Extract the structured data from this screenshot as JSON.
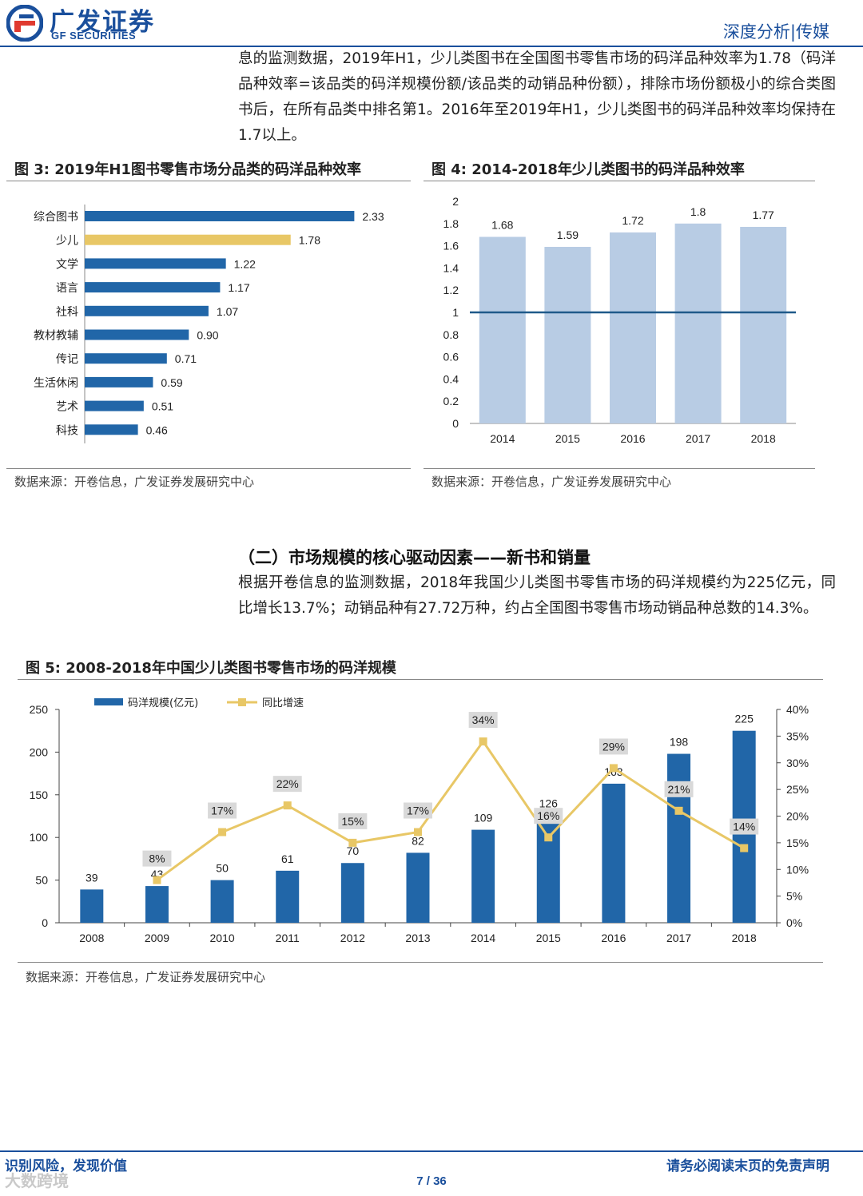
{
  "header": {
    "logo_cn": "广发证券",
    "logo_en": "GF SECURITIES",
    "section": "深度分析|传媒"
  },
  "intro_paragraph": "息的监测数据，2019年H1，少儿类图书在全国图书零售市场的码洋品种效率为1.78（码洋品种效率=该品类的码洋规模份额/该品类的动销品种份额），排除市场份额极小的综合类图书后，在所有品类中排名第1。2016年至2019年H1，少儿类图书的码洋品种效率均保持在1.7以上。",
  "figure3": {
    "title": "图 3: 2019年H1图书零售市场分品类的码洋品种效率",
    "source": "数据来源：开卷信息，广发证券发展研究中心"
  },
  "figure4": {
    "title": "图 4:  2014-2018年少儿类图书的码洋品种效率",
    "source": "数据来源：开卷信息，广发证券发展研究中心"
  },
  "section2": {
    "heading": "（二）市场规模的核心驱动因素——新书和销量",
    "paragraph": "根据开卷信息的监测数据，2018年我国少儿类图书零售市场的码洋规模约为225亿元，同比增长13.7%；动销品种有27.72万种，约占全国图书零售市场动销品种总数的14.3%。"
  },
  "figure5": {
    "title": "图 5:  2008-2018年中国少儿类图书零售市场的码洋规模",
    "source": "数据来源：开卷信息，广发证券发展研究中心"
  },
  "footer": {
    "left": "识别风险，发现价值",
    "right": "请务必阅读末页的免责声明",
    "page": "7 / 36",
    "watermark": "大数跨境"
  },
  "colors": {
    "brand_blue": "#1a4f9c",
    "bar_blue": "#2166a8",
    "highlight_gold": "#e8c766",
    "light_bar": "#b8cce4",
    "line_gold": "#e8c766"
  },
  "chart_data": [
    {
      "type": "bar",
      "orientation": "horizontal",
      "categories": [
        "综合图书",
        "少儿",
        "文学",
        "语言",
        "社科",
        "教材教辅",
        "传记",
        "生活休闲",
        "艺术",
        "科技"
      ],
      "values": [
        2.33,
        1.78,
        1.22,
        1.17,
        1.07,
        0.9,
        0.71,
        0.59,
        0.51,
        0.46
      ],
      "labels": [
        "2.33",
        "1.78",
        "1.22",
        "1.17",
        "1.07",
        "0.90",
        "0.71",
        "0.59",
        "0.51",
        "0.46"
      ],
      "highlight_index": 1,
      "xlim": [
        0,
        2.5
      ],
      "grid": false
    },
    {
      "type": "bar",
      "categories": [
        "2014",
        "2015",
        "2016",
        "2017",
        "2018"
      ],
      "values": [
        1.68,
        1.59,
        1.72,
        1.8,
        1.77
      ],
      "labels": [
        "1.68",
        "1.59",
        "1.72",
        "1.8",
        "1.77"
      ],
      "reference_line": 1,
      "ylim": [
        0,
        2
      ],
      "yticks": [
        "0",
        "0.2",
        "0.4",
        "0.6",
        "0.8",
        "1",
        "1.2",
        "1.4",
        "1.6",
        "1.8",
        "2"
      ],
      "grid": false
    },
    {
      "type": "bar",
      "categories": [
        "2008",
        "2009",
        "2010",
        "2011",
        "2012",
        "2013",
        "2014",
        "2015",
        "2016",
        "2017",
        "2018"
      ],
      "series": [
        {
          "name": "码洋规模(亿元)",
          "kind": "bar",
          "axis": "left",
          "values": [
            39,
            43,
            50,
            61,
            70,
            82,
            109,
            126,
            163,
            198,
            225
          ],
          "labels": [
            "39",
            "43",
            "50",
            "61",
            "70",
            "82",
            "109",
            "126",
            "163",
            "198",
            "225"
          ]
        },
        {
          "name": "同比增速",
          "kind": "line",
          "axis": "right",
          "values": [
            null,
            8,
            17,
            22,
            15,
            17,
            34,
            16,
            29,
            21,
            14
          ],
          "labels": [
            "",
            "8%",
            "17%",
            "22%",
            "15%",
            "17%",
            "34%",
            "16%",
            "29%",
            "21%",
            "14%"
          ]
        }
      ],
      "ylim_left": [
        0,
        250
      ],
      "yticks_left": [
        "0",
        "50",
        "100",
        "150",
        "200",
        "250"
      ],
      "ylim_right": [
        0,
        40
      ],
      "yticks_right": [
        "0%",
        "5%",
        "10%",
        "15%",
        "20%",
        "25%",
        "30%",
        "35%",
        "40%"
      ],
      "legend_position": "top-left",
      "grid": false
    }
  ]
}
